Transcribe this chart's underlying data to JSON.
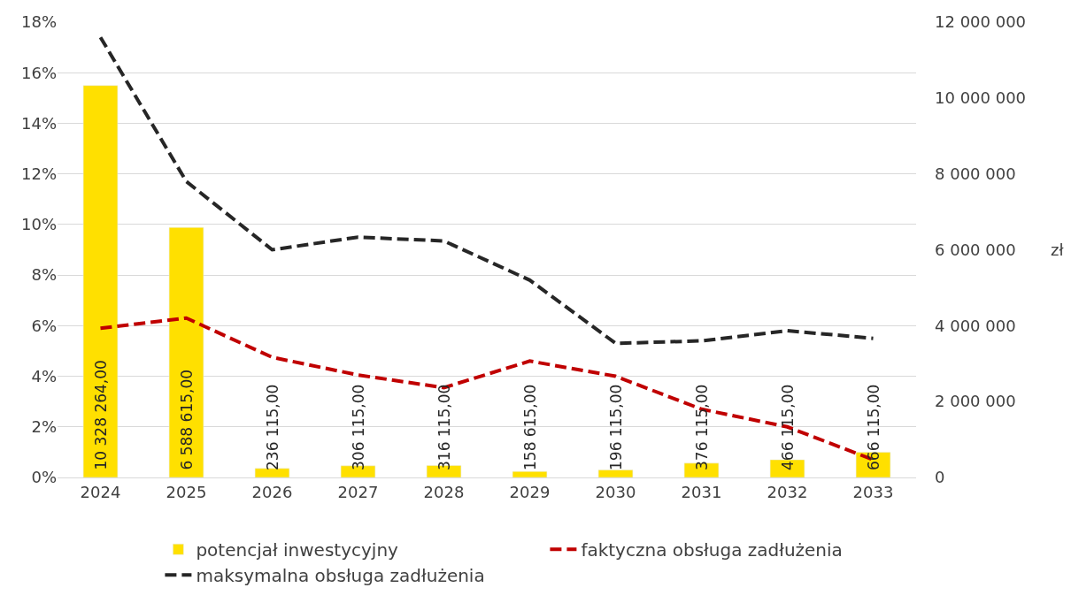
{
  "chart_data": {
    "type": "bar",
    "y2label": "zł",
    "categories": [
      "2024",
      "2025",
      "2026",
      "2027",
      "2028",
      "2029",
      "2030",
      "2031",
      "2032",
      "2033"
    ],
    "series": [
      {
        "name": "potencjał inwestycyjny",
        "axis": "y2",
        "color": "#ffe000",
        "values": [
          10328264,
          6588615,
          236115,
          306115,
          316115,
          158615,
          196115,
          376115,
          466115,
          666115
        ],
        "value_labels": [
          "10 328 264,00",
          "6 588 615,00",
          "236 115,00",
          "306 115,00",
          "316 115,00",
          "158 615,00",
          "196 115,00",
          "376 115,00",
          "466 115,00",
          "666 115,00"
        ]
      },
      {
        "name": "faktyczna obsługa zadłużenia",
        "type": "line",
        "axis": "y",
        "color": "#c00000",
        "line_style": "dashed",
        "values": [
          5.9,
          6.3,
          4.75,
          4.05,
          3.55,
          4.6,
          4.0,
          2.7,
          2.0,
          0.7
        ]
      },
      {
        "name": "maksymalna obsługa zadłużenia",
        "type": "line",
        "axis": "y",
        "color": "#262626",
        "line_style": "dashed",
        "values": [
          17.4,
          11.7,
          9.0,
          9.5,
          9.35,
          7.8,
          5.3,
          5.4,
          5.8,
          5.5
        ]
      }
    ],
    "ylim": [
      0,
      18
    ],
    "yticks": [
      {
        "value": 0,
        "label": "0%"
      },
      {
        "value": 2,
        "label": "2%"
      },
      {
        "value": 4,
        "label": "4%"
      },
      {
        "value": 6,
        "label": "6%"
      },
      {
        "value": 8,
        "label": "8%"
      },
      {
        "value": 10,
        "label": "10%"
      },
      {
        "value": 12,
        "label": "12%"
      },
      {
        "value": 14,
        "label": "14%"
      },
      {
        "value": 16,
        "label": "16%"
      },
      {
        "value": 18,
        "label": "18%"
      }
    ],
    "y2lim": [
      0,
      12000000
    ],
    "y2ticks": [
      {
        "value": 0,
        "label": "0"
      },
      {
        "value": 2000000,
        "label": "2 000 000"
      },
      {
        "value": 4000000,
        "label": "4 000 000"
      },
      {
        "value": 6000000,
        "label": "6 000 000"
      },
      {
        "value": 8000000,
        "label": "8 000 000"
      },
      {
        "value": 10000000,
        "label": "10 000 000"
      },
      {
        "value": 12000000,
        "label": "12 000 000"
      }
    ],
    "grid": "y",
    "legend": "bottom"
  }
}
